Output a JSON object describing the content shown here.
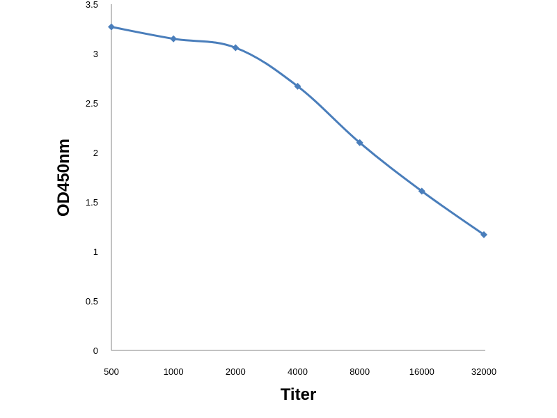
{
  "chart_data": {
    "type": "line",
    "title": "",
    "xlabel": "Titer",
    "ylabel": "OD450nm",
    "categories": [
      "500",
      "1000",
      "2000",
      "4000",
      "8000",
      "16000",
      "32000"
    ],
    "series": [
      {
        "values": [
          3.27,
          3.15,
          3.06,
          2.67,
          2.1,
          1.61,
          1.17
        ]
      }
    ],
    "ylim": [
      0,
      3.5
    ],
    "yticks": [
      "0",
      "0.5",
      "1",
      "1.5",
      "2",
      "2.5",
      "3",
      "3.5"
    ],
    "grid": false,
    "legend": "none",
    "line_color": "#4a7ebb",
    "marker": "diamond"
  }
}
